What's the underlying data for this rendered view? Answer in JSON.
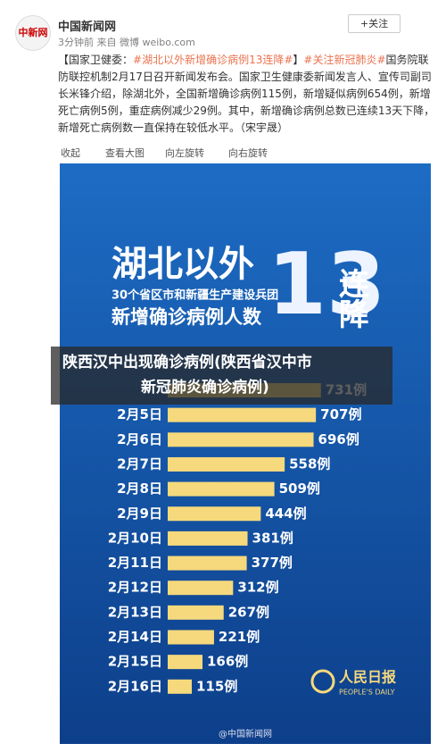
{
  "post": {
    "author": "中国新闻网",
    "meta": "3分钟前 来自 微博 weibo.com",
    "follow": "+关注",
    "text_parts": [
      {
        "text": "【国家卫健委：",
        "link": false
      },
      {
        "text": "#湖北以外新增确诊病例13连降#",
        "link": true
      },
      {
        "text": "】",
        "link": false
      },
      {
        "text": "#关注新冠肺炎#",
        "link": true
      },
      {
        "text": "国务院联防联控机制2月17日召开新闻发布会。国家卫生健康委新闻发言人、宣传司副司长米锋介绍，除湖北外，全国新增确诊病例115例，新增疑似病例654例，新增死亡病例5例，重症病例减少29例。其中，新增确诊病例总数已连续13天下降，新增死亡病例数一直保持在较低水平。（宋宇晟）",
        "link": false
      }
    ],
    "actions": [
      "收起",
      "查看大图",
      "向左旋转",
      "向右旋转"
    ]
  },
  "chart_data": {
    "type": "bar",
    "orientation": "horizontal",
    "title": "湖北以外",
    "subtitle": "30个省区市和新疆生产建设兵团",
    "heading": "新增确诊病例人数",
    "big_number": "13",
    "big_suffix": "连降",
    "categories": [
      null,
      "2月5日",
      "2月6日",
      "2月7日",
      "2月8日",
      "2月9日",
      "2月10日",
      "2月11日",
      "2月12日",
      "2月13日",
      "2月14日",
      "2月15日",
      "2月16日"
    ],
    "values": [
      731,
      707,
      696,
      558,
      509,
      444,
      381,
      377,
      312,
      267,
      221,
      166,
      115
    ],
    "value_labels": [
      "731例",
      "707例",
      "696例",
      "558例",
      "509例",
      "444例",
      "381例",
      "377例",
      "312例",
      "267例",
      "221例",
      "166例",
      "115例"
    ],
    "color": "#f6d97c",
    "logo": "人民日报",
    "logo_sub": "PEOPLE'S DAILY",
    "watermark": "@中国新闻网"
  },
  "overlay": {
    "lines": [
      "陕西汉中出现确诊病例(陕西省汉中市",
      "新冠肺炎确诊病例)"
    ]
  }
}
